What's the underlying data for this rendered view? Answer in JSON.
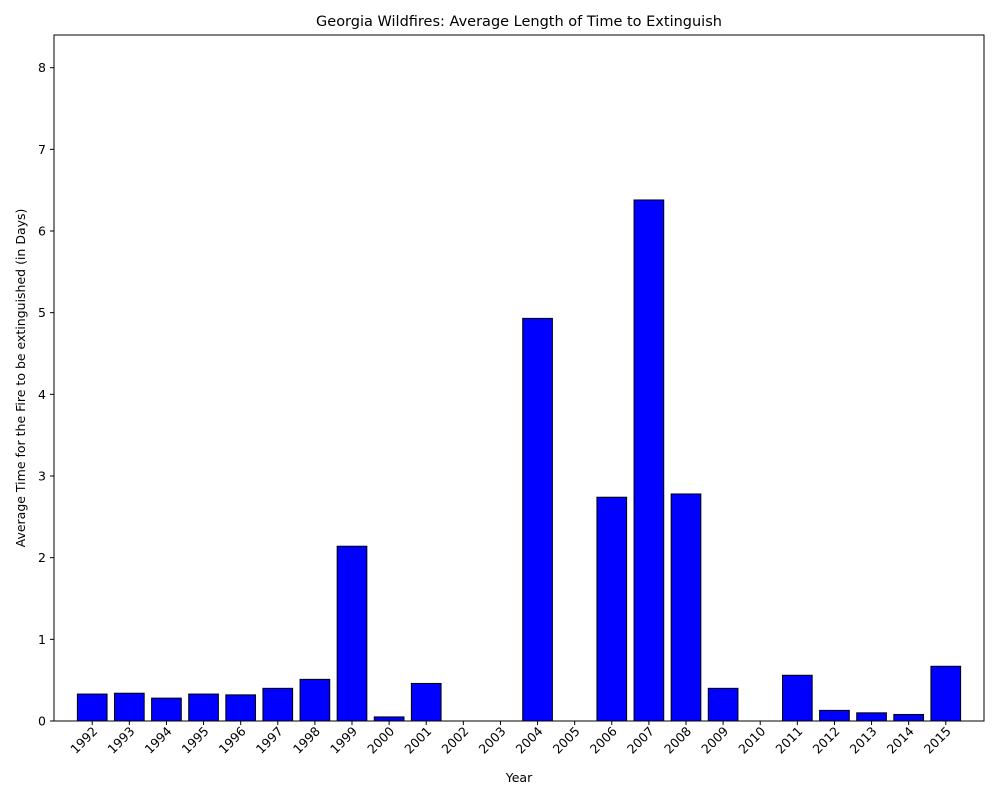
{
  "chart_data": {
    "type": "bar",
    "title": "Georgia Wildfires: Average Length of Time to Extinguish",
    "xlabel": "Year",
    "ylabel": "Average Time for the Fire to be extinguished (in Days)",
    "categories": [
      "1992",
      "1993",
      "1994",
      "1995",
      "1996",
      "1997",
      "1998",
      "1999",
      "2000",
      "2001",
      "2002",
      "2003",
      "2004",
      "2005",
      "2006",
      "2007",
      "2008",
      "2009",
      "2010",
      "2011",
      "2012",
      "2013",
      "2014",
      "2015"
    ],
    "values": [
      0.33,
      0.34,
      0.28,
      0.33,
      0.32,
      0.4,
      0.51,
      2.14,
      0.05,
      0.46,
      0.0,
      0.0,
      4.93,
      0.0,
      2.74,
      6.38,
      2.78,
      0.4,
      0.0,
      0.56,
      0.13,
      0.1,
      0.08,
      0.67
    ],
    "ylim": [
      0,
      8.4
    ],
    "yticks": [
      0,
      1,
      2,
      3,
      4,
      5,
      6,
      7,
      8
    ],
    "bar_color": "#0000ff",
    "bar_edge_color": "#000000",
    "grid": false,
    "legend": "none"
  }
}
